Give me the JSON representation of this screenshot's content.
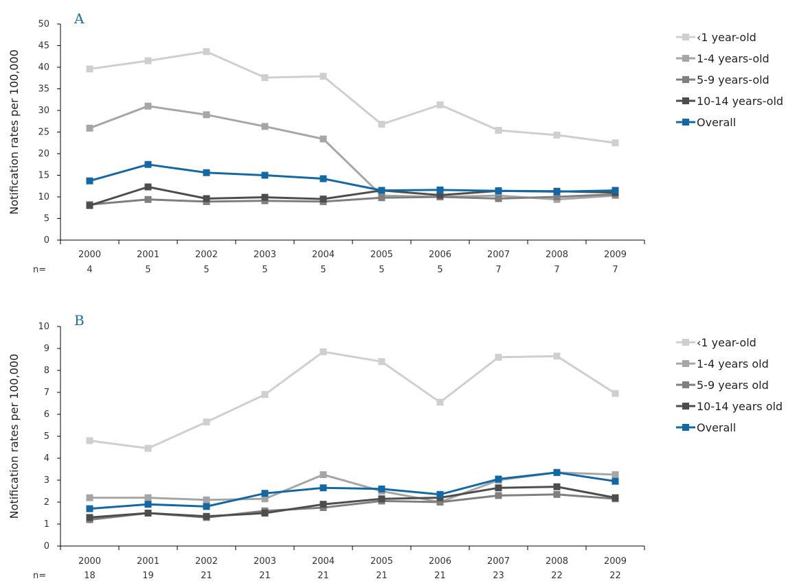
{
  "chart_data": [
    {
      "type": "line",
      "panel_label": "A",
      "ylabel": "Notification rates per 100,000",
      "ylim": [
        0,
        50
      ],
      "yticks": [
        0,
        5,
        10,
        15,
        20,
        25,
        30,
        35,
        40,
        45,
        50
      ],
      "categories": [
        "2000",
        "2001",
        "2002",
        "2003",
        "2004",
        "2005",
        "2006",
        "2007",
        "2008",
        "2009"
      ],
      "n_label": "n=",
      "n_values": [
        "4",
        "5",
        "5",
        "5",
        "5",
        "5",
        "5",
        "7",
        "7",
        "7"
      ],
      "grid": false,
      "legend_position": "right",
      "series": [
        {
          "name": "‹1 year-old",
          "color": "#cfcfcf",
          "values": [
            39.6,
            41.5,
            43.6,
            37.6,
            37.9,
            26.8,
            31.3,
            25.4,
            24.3,
            22.5
          ]
        },
        {
          "name": "1-4 years-old",
          "color": "#a6a6a6",
          "values": [
            25.9,
            31.0,
            29.0,
            26.3,
            23.4,
            10.3,
            10.0,
            10.3,
            9.4,
            10.3
          ]
        },
        {
          "name": "5-9 years-old",
          "color": "#7f7f7f",
          "values": [
            8.2,
            9.4,
            8.9,
            9.1,
            8.9,
            9.8,
            10.0,
            9.6,
            10.0,
            10.6
          ]
        },
        {
          "name": "10-14 years-old",
          "color": "#4d4d4d",
          "values": [
            8.0,
            12.3,
            9.6,
            9.9,
            9.5,
            11.5,
            10.4,
            11.4,
            11.3,
            11.0
          ]
        },
        {
          "name": "Overall",
          "color": "#1368a3",
          "values": [
            13.7,
            17.5,
            15.6,
            15.0,
            14.2,
            11.5,
            11.6,
            11.4,
            11.2,
            11.5
          ]
        }
      ]
    },
    {
      "type": "line",
      "panel_label": "B",
      "ylabel": "Notification rates per 100,000",
      "ylim": [
        0,
        10
      ],
      "yticks": [
        0,
        1,
        2,
        3,
        4,
        5,
        6,
        7,
        8,
        9,
        10
      ],
      "categories": [
        "2000",
        "2001",
        "2002",
        "2003",
        "2004",
        "2005",
        "2006",
        "2007",
        "2008",
        "2009"
      ],
      "n_label": "n=",
      "n_values": [
        "18",
        "19",
        "21",
        "21",
        "21",
        "21",
        "21",
        "23",
        "22",
        "22"
      ],
      "grid": false,
      "legend_position": "right",
      "series": [
        {
          "name": "‹1 year-old",
          "color": "#cfcfcf",
          "values": [
            4.8,
            4.45,
            5.65,
            6.9,
            8.85,
            8.4,
            6.55,
            8.6,
            8.65,
            6.95
          ]
        },
        {
          "name": "1-4 years old",
          "color": "#a6a6a6",
          "values": [
            2.2,
            2.2,
            2.1,
            2.15,
            3.25,
            2.5,
            2.0,
            3.0,
            3.35,
            3.25
          ]
        },
        {
          "name": "5-9 years old",
          "color": "#7f7f7f",
          "values": [
            1.2,
            1.5,
            1.3,
            1.6,
            1.75,
            2.05,
            2.0,
            2.3,
            2.35,
            2.15
          ]
        },
        {
          "name": "10-14 years old",
          "color": "#4d4d4d",
          "values": [
            1.3,
            1.5,
            1.35,
            1.5,
            1.9,
            2.15,
            2.2,
            2.65,
            2.7,
            2.2
          ]
        },
        {
          "name": "Overall",
          "color": "#1368a3",
          "values": [
            1.7,
            1.9,
            1.8,
            2.4,
            2.65,
            2.6,
            2.35,
            3.05,
            3.35,
            2.95
          ]
        }
      ]
    }
  ]
}
